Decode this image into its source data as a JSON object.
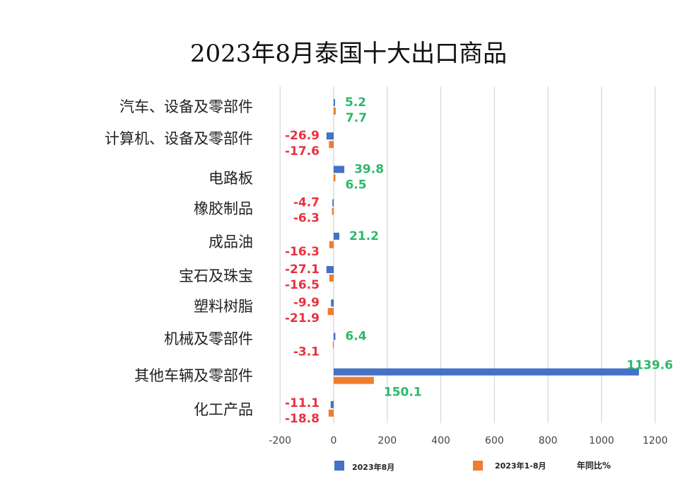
{
  "chart_data": {
    "type": "bar",
    "orientation": "horizontal",
    "title": "2023年8月泰国十大出口商品",
    "categories": [
      "汽车、设备及零部件",
      "计算机、设备及零部件",
      "电路板",
      "橡胶制品",
      "成品油",
      "宝石及珠宝",
      "塑料树脂",
      "机械及零部件",
      "其他车辆及零部件",
      "化工产品"
    ],
    "series": [
      {
        "name": "2023年8月",
        "color": "#4472C4",
        "values": [
          5.2,
          -26.9,
          39.8,
          -4.7,
          21.2,
          -27.1,
          -9.9,
          6.4,
          1139.6,
          -11.1
        ]
      },
      {
        "name": "2023年1-8月",
        "color": "#ED7D31",
        "values": [
          7.7,
          -17.6,
          6.5,
          -6.3,
          -16.3,
          -16.5,
          -21.9,
          -3.1,
          150.1,
          -18.8
        ]
      }
    ],
    "data_labels": [
      [
        "5.2",
        "-26.9",
        "39.8",
        "-4.7",
        "21.2",
        "-27.1",
        "-9.9",
        "6.4",
        "1139.6",
        "-11.1"
      ],
      [
        "7.7",
        "-17.6",
        "6.5",
        "-6.3",
        "-16.3",
        "-16.5",
        "-21.9",
        "-3.1",
        "150.1",
        "-18.8"
      ]
    ],
    "xlim": [
      -200,
      1200
    ],
    "x_ticks": [
      -200,
      0,
      200,
      400,
      600,
      800,
      1000,
      1200
    ],
    "x_tick_labels": [
      "-200",
      "0",
      "200",
      "400",
      "600",
      "800",
      "1000",
      "1200"
    ],
    "grid": true,
    "legend_note": "年同比%",
    "legend_position": "bottom",
    "label_colors": {
      "positive": "#2DB86A",
      "negative": "#E8313F"
    }
  }
}
